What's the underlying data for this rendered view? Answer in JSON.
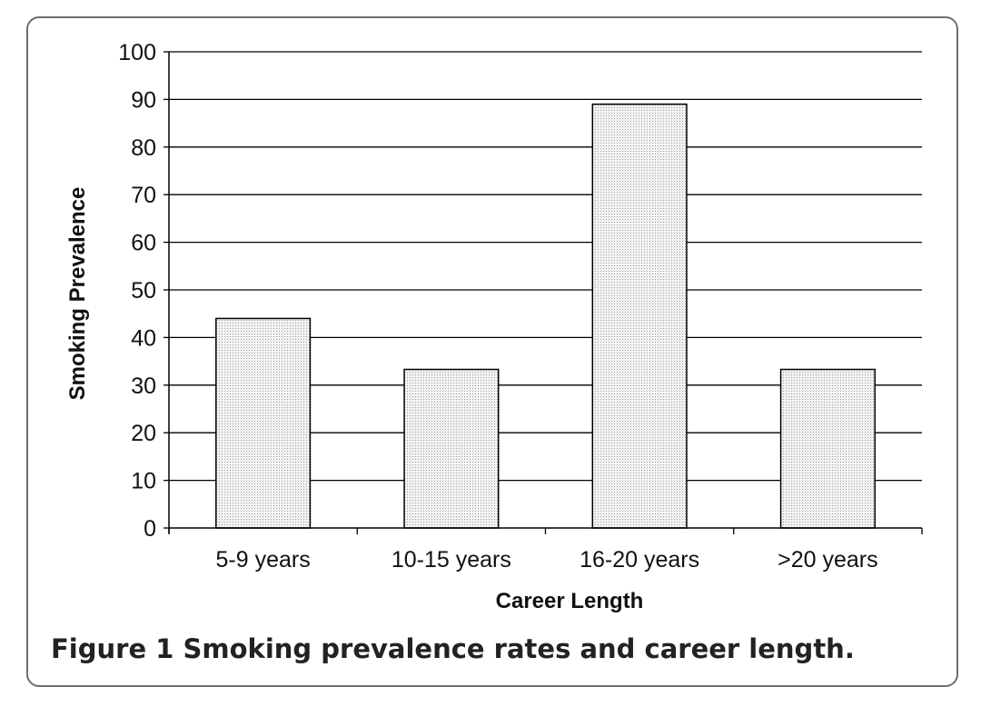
{
  "figure": {
    "caption_label": "Figure 1",
    "caption_text": "Smoking prevalence rates and career length."
  },
  "chart_data": {
    "type": "bar",
    "categories": [
      "5-9 years",
      "10-15 years",
      "16-20 years",
      ">20 years"
    ],
    "values": [
      44,
      33.3,
      89,
      33.3
    ],
    "xlabel": "Career Length",
    "ylabel": "Smoking Prevalence",
    "ylim": [
      0,
      100
    ],
    "yticks": [
      0,
      10,
      20,
      30,
      40,
      50,
      60,
      70,
      80,
      90,
      100
    ],
    "grid": true,
    "legend": "none",
    "colors": {
      "bar_fill": "#e6e6e6",
      "bar_stroke": "#000000",
      "grid": "#000000",
      "text": "#111111"
    }
  }
}
